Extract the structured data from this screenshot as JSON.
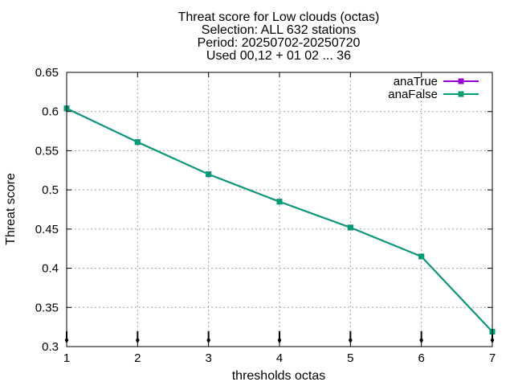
{
  "chart_data": {
    "type": "line",
    "title_lines": [
      "Threat score  for Low clouds (octas)",
      "Selection: ALL    632 stations",
      "Period: 20250702-20250720",
      "Used 00,12 + 01 02 ... 36"
    ],
    "xlabel": "thresholds octas",
    "ylabel": "Threat score",
    "x": [
      1,
      2,
      3,
      4,
      5,
      6,
      7
    ],
    "xlim": [
      1,
      7
    ],
    "ylim": [
      0.3,
      0.65
    ],
    "xticks": [
      "1",
      "2",
      "3",
      "4",
      "5",
      "6",
      "7"
    ],
    "yticks": [
      "0.3",
      "0.35",
      "0.4",
      "0.45",
      "0.5",
      "0.55",
      "0.6",
      "0.65"
    ],
    "grid": true,
    "legend_position": "top-right",
    "series": [
      {
        "name": "anaTrue",
        "color": "#9400d3",
        "values": [
          0.604,
          0.561,
          0.52,
          0.485,
          0.452,
          0.415,
          0.319
        ]
      },
      {
        "name": "anaFalse",
        "color": "#009e73",
        "values": [
          0.604,
          0.561,
          0.52,
          0.485,
          0.452,
          0.415,
          0.319
        ]
      }
    ]
  }
}
